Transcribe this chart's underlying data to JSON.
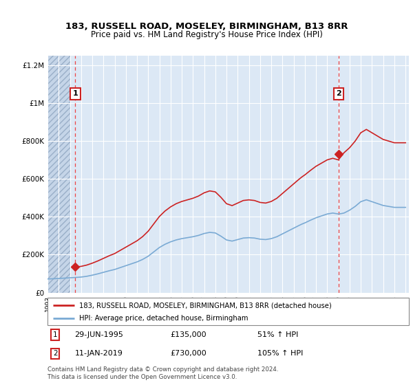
{
  "title": "183, RUSSELL ROAD, MOSELEY, BIRMINGHAM, B13 8RR",
  "subtitle": "Price paid vs. HM Land Registry's House Price Index (HPI)",
  "legend_line1": "183, RUSSELL ROAD, MOSELEY, BIRMINGHAM, B13 8RR (detached house)",
  "legend_line2": "HPI: Average price, detached house, Birmingham",
  "annotation1_label": "1",
  "annotation2_label": "2",
  "hpi_color": "#7aaad4",
  "price_color": "#cc2222",
  "vline_color": "#ee4444",
  "dot_color": "#cc2222",
  "ylim_max": 1250000,
  "ylim_min": 0,
  "sale1_year": 1995.49,
  "sale1_price": 135000,
  "sale2_year": 2019.03,
  "sale2_price": 730000,
  "xlim_min": 1993.0,
  "xlim_max": 2025.3,
  "hatch_end_year": 1995.0,
  "bg_light": "#dce8f5",
  "bg_hatch_face": "#c8d8ec",
  "grid_color": "#ffffff",
  "footer": "Contains HM Land Registry data © Crown copyright and database right 2024.\nThis data is licensed under the Open Government Licence v3.0.",
  "hpi_years": [
    1993.0,
    1993.25,
    1993.5,
    1993.75,
    1994.0,
    1994.25,
    1994.5,
    1994.75,
    1995.0,
    1995.25,
    1995.5,
    1995.75,
    1996.0,
    1996.25,
    1996.5,
    1996.75,
    1997.0,
    1997.25,
    1997.5,
    1997.75,
    1998.0,
    1998.25,
    1998.5,
    1998.75,
    1999.0,
    1999.25,
    1999.5,
    1999.75,
    2000.0,
    2000.25,
    2000.5,
    2000.75,
    2001.0,
    2001.25,
    2001.5,
    2001.75,
    2002.0,
    2002.25,
    2002.5,
    2002.75,
    2003.0,
    2003.25,
    2003.5,
    2003.75,
    2004.0,
    2004.25,
    2004.5,
    2004.75,
    2005.0,
    2005.25,
    2005.5,
    2005.75,
    2006.0,
    2006.25,
    2006.5,
    2006.75,
    2007.0,
    2007.25,
    2007.5,
    2007.75,
    2008.0,
    2008.25,
    2008.5,
    2008.75,
    2009.0,
    2009.25,
    2009.5,
    2009.75,
    2010.0,
    2010.25,
    2010.5,
    2010.75,
    2011.0,
    2011.25,
    2011.5,
    2011.75,
    2012.0,
    2012.25,
    2012.5,
    2012.75,
    2013.0,
    2013.25,
    2013.5,
    2013.75,
    2014.0,
    2014.25,
    2014.5,
    2014.75,
    2015.0,
    2015.25,
    2015.5,
    2015.75,
    2016.0,
    2016.25,
    2016.5,
    2016.75,
    2017.0,
    2017.25,
    2017.5,
    2017.75,
    2018.0,
    2018.25,
    2018.5,
    2018.75,
    2019.0,
    2019.25,
    2019.5,
    2019.75,
    2020.0,
    2020.25,
    2020.5,
    2020.75,
    2021.0,
    2021.25,
    2021.5,
    2021.75,
    2022.0,
    2022.25,
    2022.5,
    2022.75,
    2023.0,
    2023.25,
    2023.5,
    2023.75,
    2024.0,
    2024.25,
    2024.5,
    2024.75,
    2025.0
  ],
  "hpi_values": [
    72000,
    72500,
    73000,
    73800,
    74500,
    75500,
    76500,
    77200,
    78000,
    79000,
    80000,
    81000,
    82000,
    84000,
    86000,
    89000,
    92000,
    95500,
    99000,
    103000,
    107000,
    111000,
    115000,
    118500,
    122000,
    127000,
    132000,
    137000,
    142000,
    147000,
    152000,
    157000,
    162000,
    168500,
    175000,
    183500,
    192000,
    203500,
    215000,
    226500,
    238000,
    246500,
    255000,
    261500,
    268000,
    273000,
    278000,
    281500,
    285000,
    287500,
    290000,
    292500,
    295000,
    298500,
    302000,
    307000,
    312000,
    315000,
    318000,
    316500,
    315000,
    306500,
    298000,
    288000,
    278000,
    275000,
    272000,
    276000,
    280000,
    284000,
    288000,
    289000,
    290000,
    289000,
    288000,
    285000,
    282000,
    281000,
    280000,
    282500,
    285000,
    290000,
    295000,
    302500,
    310000,
    317500,
    325000,
    332500,
    340000,
    347500,
    355000,
    362000,
    368000,
    375000,
    382000,
    388500,
    395000,
    400000,
    405000,
    410000,
    415000,
    417500,
    420000,
    417500,
    415000,
    417000,
    420000,
    427500,
    435000,
    445000,
    455000,
    467500,
    480000,
    485000,
    490000,
    485000,
    480000,
    475000,
    470000,
    465000,
    460000,
    457500,
    455000,
    452500,
    450000,
    450000,
    450000,
    450000,
    450000
  ]
}
